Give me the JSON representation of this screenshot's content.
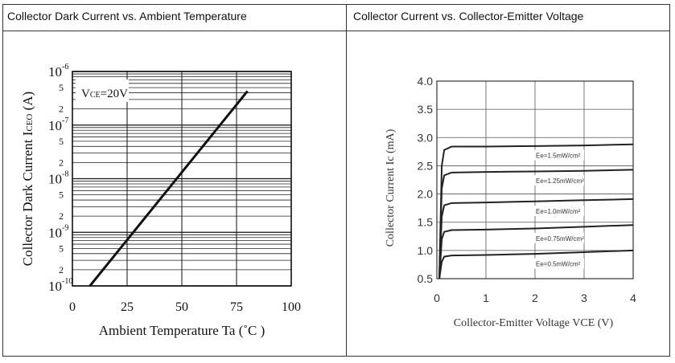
{
  "panels": {
    "left_title": "Collector Dark Current vs. Ambient Temperature",
    "right_title": "Collector Current vs. Collector-Emitter Voltage"
  },
  "chart_data": [
    {
      "type": "line",
      "title": "Collector Dark Current vs. Ambient Temperature",
      "xlabel": "Ambient Temperature Ta (˚C )",
      "ylabel": "Collector Dark Current ICEO (A)",
      "ylabel_parts": {
        "main": "Collector Dark Current I",
        "sub": "CEO",
        "unit": " (A)"
      },
      "xlim": [
        0,
        100
      ],
      "ylim": [
        1e-10,
        1e-06
      ],
      "yscale": "log",
      "grid": true,
      "xticks": [
        "0",
        "25",
        "50",
        "75",
        "100"
      ],
      "xtick_values": [
        0,
        25,
        50,
        75,
        100
      ],
      "yticks_decades": [
        {
          "base": "10",
          "exp": "-10",
          "value": 1e-10
        },
        {
          "base": "10",
          "exp": "-9",
          "value": 1e-09
        },
        {
          "base": "10",
          "exp": "-8",
          "value": 1e-08
        },
        {
          "base": "10",
          "exp": "-7",
          "value": 1e-07
        },
        {
          "base": "10",
          "exp": "-6",
          "value": 1e-06
        }
      ],
      "yticks_minor_labels": [
        "2",
        "5"
      ],
      "annotation": {
        "main": "V",
        "sub": "CE",
        "rest": "=20V"
      },
      "series": [
        {
          "x": [
            8,
            80
          ],
          "y": [
            1e-10,
            4.3e-07
          ]
        }
      ]
    },
    {
      "type": "line",
      "title": "Collector Current vs. Collector-Emitter Voltage",
      "xlabel": "Collector-Emitter Voltage VCE (V)",
      "ylabel": "Collector Current Ic (mA)",
      "xlim": [
        0,
        4
      ],
      "ylim": [
        0.5,
        4.0
      ],
      "grid": true,
      "xticks": [
        "0",
        "1",
        "2",
        "3",
        "4"
      ],
      "yticks": [
        "0.5",
        "1.0",
        "1.5",
        "2.0",
        "2.5",
        "3.0",
        "3.5",
        "4.0"
      ],
      "series": [
        {
          "name": "Ee=1.5mW/cm²",
          "x": [
            0.05,
            0.1,
            0.15,
            0.3,
            1,
            2,
            3,
            4
          ],
          "y": [
            0.5,
            2.5,
            2.78,
            2.84,
            2.84,
            2.85,
            2.86,
            2.88
          ]
        },
        {
          "name": "Ee=1.25mW/cm²",
          "x": [
            0.05,
            0.1,
            0.15,
            0.3,
            1,
            2,
            3,
            4
          ],
          "y": [
            0.5,
            2.1,
            2.33,
            2.38,
            2.39,
            2.4,
            2.41,
            2.43
          ]
        },
        {
          "name": "Ee=1.0mW/cm²",
          "x": [
            0.05,
            0.1,
            0.15,
            0.3,
            1,
            2,
            3,
            4
          ],
          "y": [
            0.5,
            1.6,
            1.8,
            1.84,
            1.85,
            1.87,
            1.89,
            1.91
          ]
        },
        {
          "name": "Ee=0.75mW/cm²",
          "x": [
            0.05,
            0.1,
            0.15,
            0.3,
            1,
            2,
            3,
            4
          ],
          "y": [
            0.5,
            1.2,
            1.33,
            1.36,
            1.37,
            1.39,
            1.42,
            1.45
          ]
        },
        {
          "name": "Ee=0.5mW/cm²",
          "x": [
            0.05,
            0.1,
            0.15,
            0.3,
            1,
            2,
            3,
            4
          ],
          "y": [
            0.5,
            0.8,
            0.89,
            0.91,
            0.92,
            0.94,
            0.97,
            1.0
          ]
        }
      ]
    }
  ]
}
